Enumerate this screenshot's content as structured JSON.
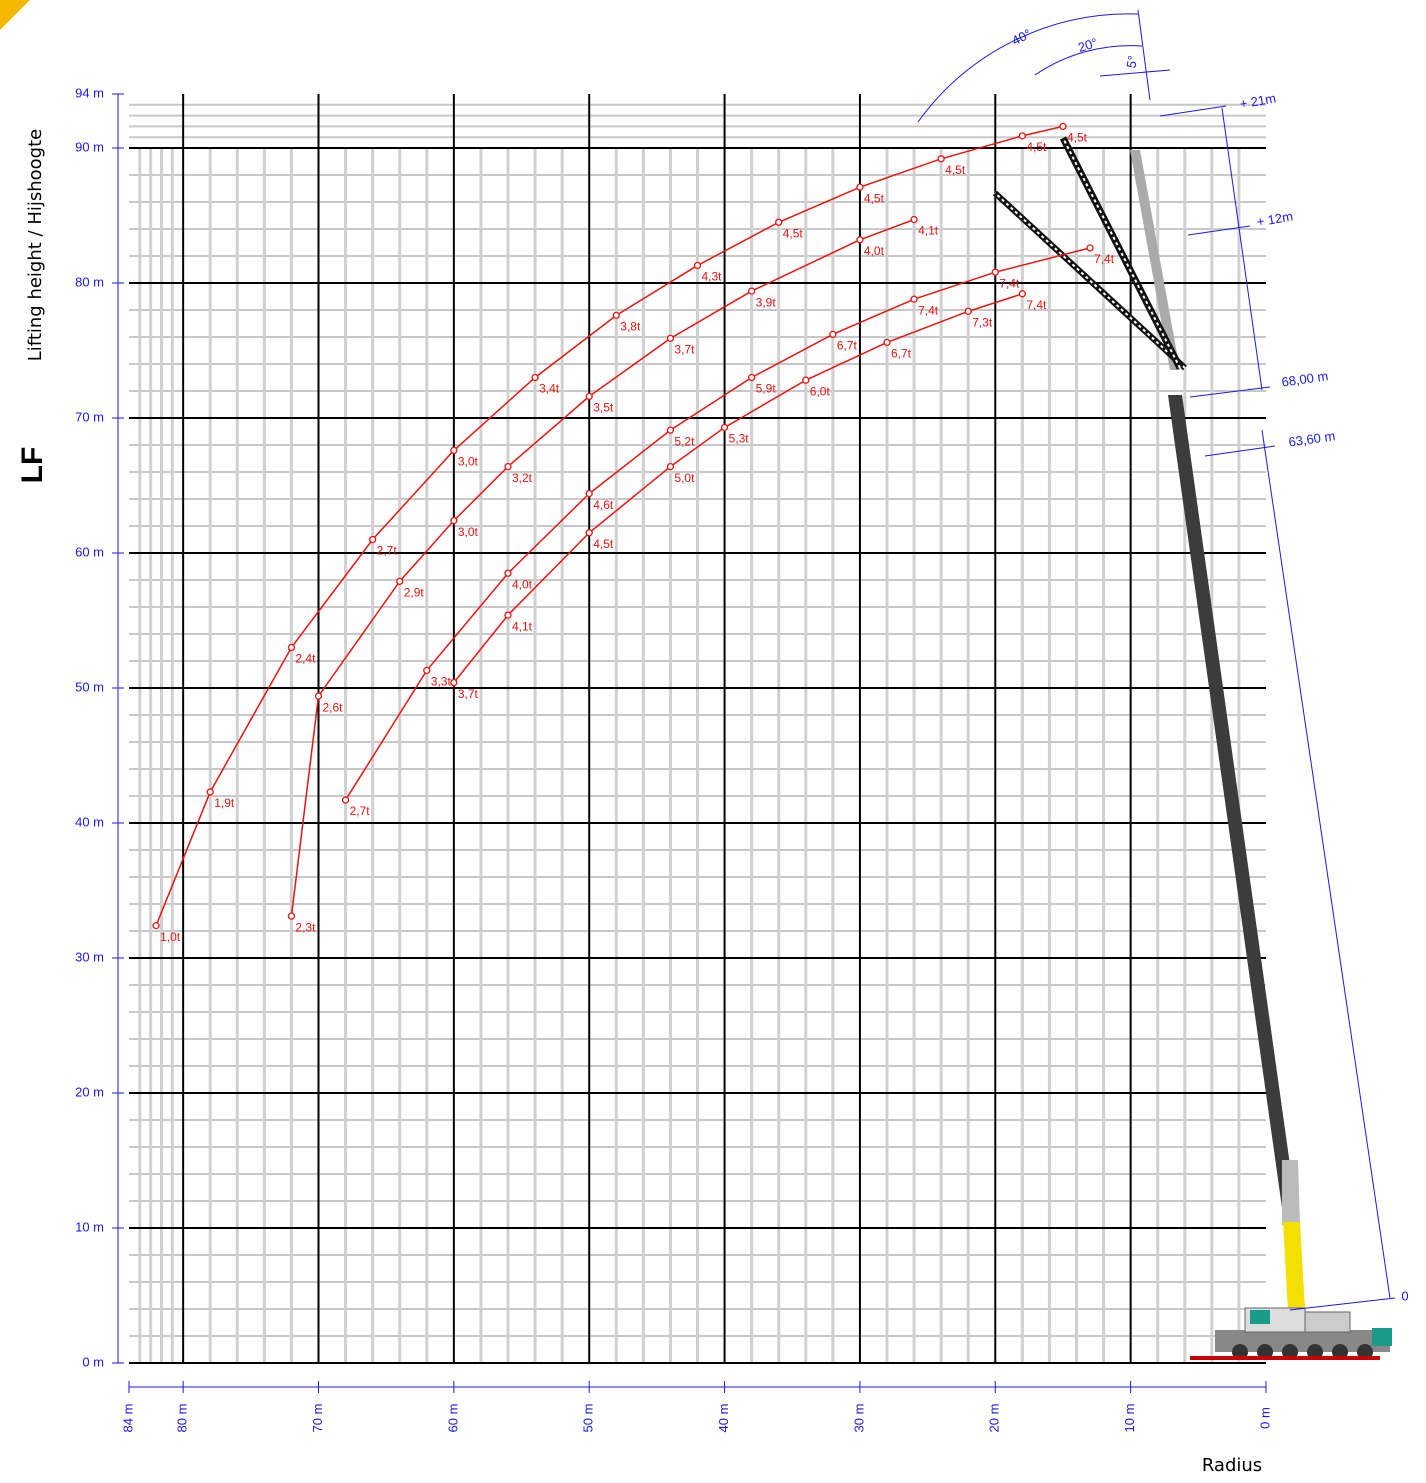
{
  "chart_data": {
    "type": "line",
    "side_title": "LF",
    "y_label": "Lifting height / Hijshoogte",
    "x_label": "Radius",
    "xlim": [
      84,
      0
    ],
    "ylim": [
      0,
      94
    ],
    "xticks": [
      {
        "value": 84,
        "label": "84 m"
      },
      {
        "value": 80,
        "label": "80 m"
      },
      {
        "value": 70,
        "label": "70 m"
      },
      {
        "value": 60,
        "label": "60 m"
      },
      {
        "value": 50,
        "label": "50 m"
      },
      {
        "value": 40,
        "label": "40 m"
      },
      {
        "value": 30,
        "label": "30 m"
      },
      {
        "value": 20,
        "label": "20 m"
      },
      {
        "value": 10,
        "label": "10 m"
      },
      {
        "value": 0,
        "label": "0 m"
      }
    ],
    "yticks": [
      {
        "value": 0,
        "label": "0 m"
      },
      {
        "value": 10,
        "label": "10 m"
      },
      {
        "value": 20,
        "label": "20 m"
      },
      {
        "value": 30,
        "label": "30 m"
      },
      {
        "value": 40,
        "label": "40 m"
      },
      {
        "value": 50,
        "label": "50 m"
      },
      {
        "value": 60,
        "label": "60 m"
      },
      {
        "value": 70,
        "label": "70 m"
      },
      {
        "value": 80,
        "label": "80 m"
      },
      {
        "value": 90,
        "label": "90 m"
      },
      {
        "value": 94,
        "label": "94 m"
      }
    ],
    "grid": true,
    "series": [
      {
        "color": "#e8140f",
        "x": [
          82,
          78,
          72,
          66,
          60,
          54,
          48,
          42,
          36,
          30,
          24,
          18,
          15
        ],
        "values": [
          32.4,
          42.3,
          53,
          61,
          67.6,
          73,
          77.6,
          81.3,
          84.5,
          87.1,
          89.2,
          90.9,
          91.6
        ],
        "labels": [
          "1,0t",
          "1,9t",
          "2,4t",
          "2,7t",
          "3,0t",
          "3,4t",
          "3,8t",
          "4,3t",
          "4,5t",
          "4,5t",
          "4,5t",
          "4,5t",
          "4,5t"
        ]
      },
      {
        "color": "#e8140f",
        "x": [
          72,
          70,
          64,
          60,
          56,
          50,
          44,
          38,
          30,
          26
        ],
        "values": [
          33.1,
          49.4,
          57.9,
          62.4,
          66.4,
          71.6,
          75.9,
          79.4,
          83.2,
          84.7
        ],
        "labels": [
          "2,3t",
          "2,6t",
          "2,9t",
          "3,0t",
          "3,2t",
          "3,5t",
          "3,7t",
          "3,9t",
          "4,0t",
          "4,1t"
        ]
      },
      {
        "color": "#e8140f",
        "x": [
          68,
          62,
          56,
          50,
          44,
          38,
          32,
          26,
          20,
          13
        ],
        "values": [
          41.7,
          51.3,
          58.5,
          64.4,
          69.1,
          73,
          76.2,
          78.8,
          80.8,
          82.6
        ],
        "labels": [
          "2,7t",
          "3,3t",
          "4,0t",
          "4,6t",
          "5,2t",
          "5,9t",
          "6,7t",
          "7,4t",
          "7,4t",
          "7,4t"
        ]
      },
      {
        "color": "#e8140f",
        "x": [
          60,
          56,
          50,
          44,
          40,
          34,
          28,
          22,
          18
        ],
        "values": [
          50.4,
          55.4,
          61.5,
          66.4,
          69.3,
          72.8,
          75.6,
          77.9,
          79.2
        ],
        "labels": [
          "3,7t",
          "4,1t",
          "4,5t",
          "5,0t",
          "5,3t",
          "6,0t",
          "6,7t",
          "7,3t",
          "7,4t"
        ]
      }
    ],
    "annotations": [
      "40°",
      "20°",
      "5°",
      "+ 21m",
      "+ 12m",
      "68,00 m",
      "63,60 m",
      "0"
    ]
  }
}
